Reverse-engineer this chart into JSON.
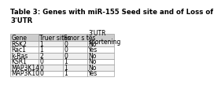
{
  "title_line1": "Table 3: Genes with miR-155 Seed site and of Loss of",
  "title_line2": "3'UTR",
  "columns": [
    "Gene",
    "Truer sites",
    "Smor s tes",
    "3'UTR\nshortening"
  ],
  "rows": [
    [
      "RSK2",
      "1",
      "0",
      "No"
    ],
    [
      "Rac1",
      "1",
      "0",
      "Yes"
    ],
    [
      "k-Ras",
      "2",
      "0",
      "No"
    ],
    [
      "KSR1",
      "0",
      "1",
      "No"
    ],
    [
      "MAP3K14",
      "0",
      "1",
      "No"
    ],
    [
      "MAP3K10",
      "0",
      "1",
      "Yes"
    ]
  ],
  "header_bg": "#cccccc",
  "row_bg_alt": "#eeeeee",
  "row_bg": "#ffffff",
  "title_fontsize": 6.2,
  "cell_fontsize": 5.5,
  "header_fontsize": 5.5
}
